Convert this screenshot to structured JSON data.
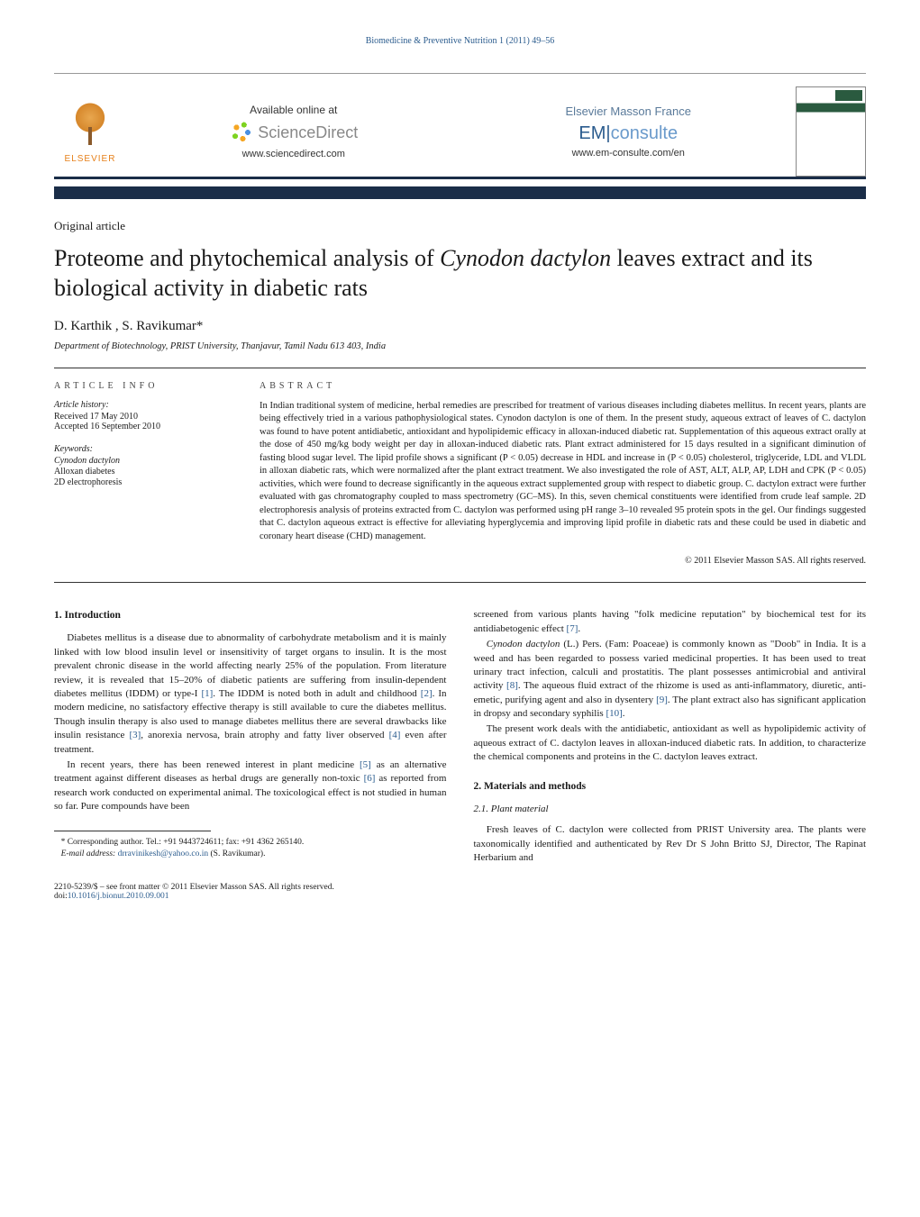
{
  "running_head": "Biomedicine & Preventive Nutrition 1 (2011) 49–56",
  "header": {
    "avail_label": "Available online at",
    "sd_name": "ScienceDirect",
    "sd_url": "www.sciencedirect.com",
    "em_title": "Elsevier Masson France",
    "em_brand_left": "EM",
    "em_brand_right": "consulte",
    "em_url": "www.em-consulte.com/en",
    "elsevier": "ELSEVIER"
  },
  "article_type": "Original article",
  "title_pre": "Proteome and phytochemical analysis of ",
  "title_em": "Cynodon dactylon",
  "title_post": " leaves extract and its biological activity in diabetic rats",
  "authors": "D. Karthik , S. Ravikumar*",
  "affiliation": "Department of Biotechnology, PRIST University, Thanjavur, Tamil Nadu 613 403, India",
  "meta": {
    "info_head": "article info",
    "history_label": "Article history:",
    "received": "Received 17 May 2010",
    "accepted": "Accepted 16 September 2010",
    "kw_label": "Keywords:",
    "kw1": "Cynodon dactylon",
    "kw2": "Alloxan diabetes",
    "kw3": "2D electrophoresis"
  },
  "abstract": {
    "head": "abstract",
    "text": "In Indian traditional system of medicine, herbal remedies are prescribed for treatment of various diseases including diabetes mellitus. In recent years, plants are being effectively tried in a various pathophysiological states. Cynodon dactylon is one of them. In the present study, aqueous extract of leaves of C. dactylon was found to have potent antidiabetic, antioxidant and hypolipidemic efficacy in alloxan-induced diabetic rat. Supplementation of this aqueous extract orally at the dose of 450 mg/kg body weight per day in alloxan-induced diabetic rats. Plant extract administered for 15 days resulted in a significant diminution of fasting blood sugar level. The lipid profile shows a significant (P < 0.05) decrease in HDL and increase in (P < 0.05) cholesterol, triglyceride, LDL and VLDL in alloxan diabetic rats, which were normalized after the plant extract treatment. We also investigated the role of AST, ALT, ALP, AP, LDH and CPK (P < 0.05) activities, which were found to decrease significantly in the aqueous extract supplemented group with respect to diabetic group. C. dactylon extract were further evaluated with gas chromatography coupled to mass spectrometry (GC–MS). In this, seven chemical constituents were identified from crude leaf sample. 2D electrophoresis analysis of proteins extracted from C. dactylon was performed using pH range 3–10 revealed 95 protein spots in the gel. Our findings suggested that C. dactylon aqueous extract is effective for alleviating hyperglycemia and improving lipid profile in diabetic rats and these could be used in diabetic and coronary heart disease (CHD) management.",
    "copyright": "© 2011 Elsevier Masson SAS. All rights reserved."
  },
  "body": {
    "s1_head": "1. Introduction",
    "s1p1": "Diabetes mellitus is a disease due to abnormality of carbohydrate metabolism and it is mainly linked with low blood insulin level or insensitivity of target organs to insulin. It is the most prevalent chronic disease in the world affecting nearly 25% of the population. From literature review, it is revealed that 15–20% of diabetic patients are suffering from insulin-dependent diabetes mellitus (IDDM) or type-I [1]. The IDDM is noted both in adult and childhood [2]. In modern medicine, no satisfactory effective therapy is still available to cure the diabetes mellitus. Though insulin therapy is also used to manage diabetes mellitus there are several drawbacks like insulin resistance [3], anorexia nervosa, brain atrophy and fatty liver observed [4] even after treatment.",
    "s1p2": "In recent years, there has been renewed interest in plant medicine [5] as an alternative treatment against different diseases as herbal drugs are generally non-toxic [6] as reported from research work conducted on experimental animal. The toxicological effect is not studied in human so far. Pure compounds have been",
    "s1p3": "screened from various plants having \"folk medicine reputation\" by biochemical test for its antidiabetogenic effect [7].",
    "s1p4_pre": "",
    "s1p4_em": "Cynodon dactylon",
    "s1p4_post": " (L.) Pers. (Fam: Poaceae) is commonly known as \"Doob\" in India. It is a weed and has been regarded to possess varied medicinal properties. It has been used to treat urinary tract infection, calculi and prostatitis. The plant possesses antimicrobial and antiviral activity [8]. The aqueous fluid extract of the rhizome is used as anti-inflammatory, diuretic, anti-emetic, purifying agent and also in dysentery [9]. The plant extract also has significant application in dropsy and secondary syphilis [10].",
    "s1p5": "The present work deals with the antidiabetic, antioxidant as well as hypolipidemic activity of aqueous extract of C. dactylon leaves in alloxan-induced diabetic rats. In addition, to characterize the chemical components and proteins in the C. dactylon leaves extract.",
    "s2_head": "2. Materials and methods",
    "s21_head": "2.1. Plant material",
    "s21p1": "Fresh leaves of C. dactylon were collected from PRIST University area. The plants were taxonomically identified and authenticated by Rev Dr S John Britto SJ, Director, The Rapinat Herbarium and"
  },
  "footnote": {
    "corr": "* Corresponding author. Tel.: +91 9443724611; fax: +91 4362 265140.",
    "email_label": "E-mail address: ",
    "email": "drravinikesh@yahoo.co.in",
    "email_post": " (S. Ravikumar)."
  },
  "footer": {
    "line1": "2210-5239/$ – see front matter © 2011 Elsevier Masson SAS. All rights reserved.",
    "line2": "doi:10.1016/j.bionut.2010.09.001"
  },
  "colors": {
    "link": "#2b5c8e",
    "rule_dark": "#1a2d48",
    "elsevier_orange": "#e6801a"
  }
}
